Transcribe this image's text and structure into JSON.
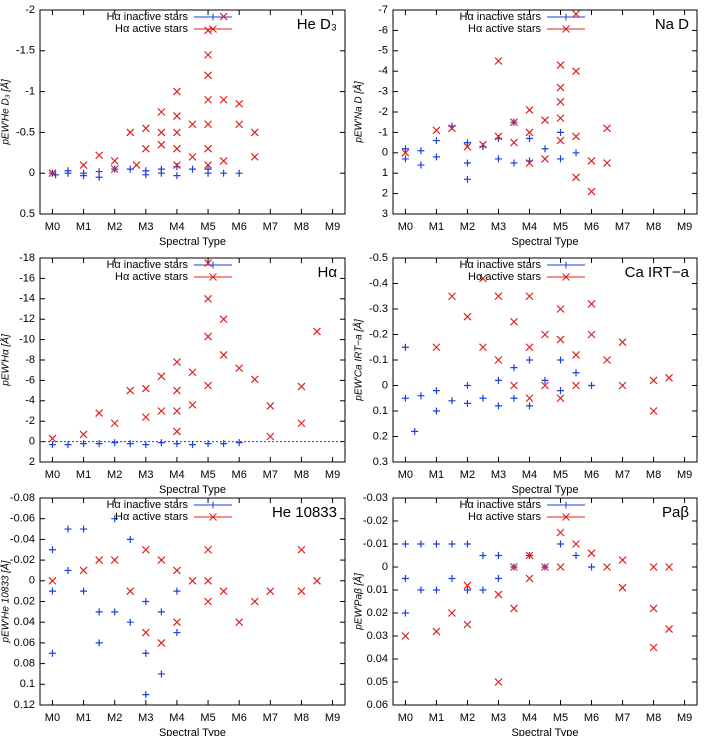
{
  "chart_data": [
    {
      "type": "scatter",
      "title": "He D₃",
      "x_label": "Spectral Type",
      "y_label": "pEW′He D₃ [Å]",
      "xlim": [
        -0.4,
        9.4
      ],
      "xticks": [
        {
          "value": 0,
          "label": "M0"
        },
        {
          "value": 1,
          "label": "M1"
        },
        {
          "value": 2,
          "label": "M2"
        },
        {
          "value": 3,
          "label": "M3"
        },
        {
          "value": 4,
          "label": "M4"
        },
        {
          "value": 5,
          "label": "M5"
        },
        {
          "value": 6,
          "label": "M6"
        },
        {
          "value": 7,
          "label": "M7"
        },
        {
          "value": 8,
          "label": "M8"
        },
        {
          "value": 9,
          "label": "M9"
        }
      ],
      "ylim": [
        0.5,
        -2
      ],
      "yticks": [
        0.5,
        0,
        -0.5,
        -1,
        -1.5,
        -2
      ],
      "series": [
        {
          "name": "Hα inactive stars",
          "color": "#1f3fe0",
          "marker": "plus",
          "x": [
            0,
            0.1,
            0.5,
            0.5,
            1,
            1,
            1.5,
            1.5,
            2,
            2.5,
            3,
            3,
            3.5,
            3.5,
            4,
            4,
            4.5,
            5,
            5,
            5.5,
            6
          ],
          "values": [
            0,
            0.02,
            0,
            -0.03,
            0,
            0.03,
            -0.02,
            0.05,
            -0.05,
            -0.05,
            0.02,
            -0.03,
            0,
            -0.05,
            0.03,
            -0.08,
            -0.05,
            0,
            -0.05,
            0,
            0
          ]
        },
        {
          "name": "Hα active stars",
          "color": "#e0201f",
          "marker": "cross",
          "x": [
            0,
            1,
            1.5,
            2,
            2,
            2.5,
            2.7,
            3,
            3,
            3.5,
            3.5,
            3.5,
            4,
            4,
            4,
            4,
            4,
            4.5,
            4.5,
            5,
            5,
            5,
            5,
            5,
            5,
            5,
            5.5,
            5.5,
            5.5,
            6,
            6,
            6.5,
            6.5
          ],
          "values": [
            0,
            -0.1,
            -0.22,
            -0.05,
            -0.15,
            -0.5,
            -0.1,
            -0.55,
            -0.3,
            -0.75,
            -0.5,
            -0.35,
            -1.0,
            -0.7,
            -0.5,
            -0.3,
            -0.1,
            -0.6,
            -0.2,
            -1.75,
            -1.45,
            -1.2,
            -0.9,
            -0.6,
            -0.3,
            -0.1,
            -1.92,
            -0.9,
            -0.15,
            -0.85,
            -0.6,
            -0.5,
            -0.2
          ]
        }
      ]
    },
    {
      "type": "scatter",
      "title": "Na D",
      "x_label": "Spectral Type",
      "y_label": "pEW′Na D [Å]",
      "xlim": [
        -0.4,
        9.4
      ],
      "xticks": [
        {
          "value": 0,
          "label": "M0"
        },
        {
          "value": 1,
          "label": "M1"
        },
        {
          "value": 2,
          "label": "M2"
        },
        {
          "value": 3,
          "label": "M3"
        },
        {
          "value": 4,
          "label": "M4"
        },
        {
          "value": 5,
          "label": "M5"
        },
        {
          "value": 6,
          "label": "M6"
        },
        {
          "value": 7,
          "label": "M7"
        },
        {
          "value": 8,
          "label": "M8"
        },
        {
          "value": 9,
          "label": "M9"
        }
      ],
      "ylim": [
        3,
        -7
      ],
      "yticks": [
        3,
        2,
        1,
        0,
        -1,
        -2,
        -3,
        -4,
        -5,
        -6,
        -7
      ],
      "series": [
        {
          "name": "Hα inactive stars",
          "color": "#1f3fe0",
          "marker": "plus",
          "x": [
            0,
            0,
            0.5,
            0.5,
            1,
            1,
            1.5,
            2,
            2,
            2,
            2.5,
            3,
            3,
            3.5,
            3.5,
            4,
            4,
            4.5,
            5,
            5,
            5.5
          ],
          "values": [
            -0.2,
            0.3,
            -0.1,
            0.6,
            -0.6,
            0.2,
            -1.3,
            -0.5,
            0.5,
            1.3,
            -0.3,
            -0.7,
            0.3,
            -1.5,
            0.5,
            -0.7,
            0.4,
            -0.2,
            -1,
            0.3,
            0
          ]
        },
        {
          "name": "Hα active stars",
          "color": "#e0201f",
          "marker": "cross",
          "x": [
            0,
            1,
            1.5,
            2,
            2.5,
            3,
            3,
            3.5,
            3.5,
            4,
            4,
            4,
            4.5,
            4.5,
            5,
            5,
            5,
            5,
            5,
            5.5,
            5.5,
            5.5,
            5.5,
            6,
            6,
            6.5,
            6.5
          ],
          "values": [
            0,
            -1.1,
            -1.2,
            -0.3,
            -0.4,
            -4.5,
            -0.8,
            -1.5,
            -0.5,
            -2.1,
            -1,
            0.5,
            -1.6,
            0.3,
            -4.3,
            -3.2,
            -2.5,
            -1.7,
            -0.6,
            -6.8,
            -4,
            -0.8,
            1.2,
            0.4,
            1.9,
            -1.2,
            0.5
          ]
        }
      ]
    },
    {
      "type": "scatter",
      "title": "Hα",
      "x_label": "Spectral Type",
      "y_label": "pEW′Hα [Å]",
      "xlim": [
        -0.4,
        9.4
      ],
      "xticks": [
        {
          "value": 0,
          "label": "M0"
        },
        {
          "value": 1,
          "label": "M1"
        },
        {
          "value": 2,
          "label": "M2"
        },
        {
          "value": 3,
          "label": "M3"
        },
        {
          "value": 4,
          "label": "M4"
        },
        {
          "value": 5,
          "label": "M5"
        },
        {
          "value": 6,
          "label": "M6"
        },
        {
          "value": 7,
          "label": "M7"
        },
        {
          "value": 8,
          "label": "M8"
        },
        {
          "value": 9,
          "label": "M9"
        }
      ],
      "ylim": [
        2,
        -18
      ],
      "yticks": [
        2,
        0,
        -2,
        -4,
        -6,
        -8,
        -10,
        -12,
        -14,
        -16,
        -18
      ],
      "reference_line": 0,
      "series": [
        {
          "name": "Hα inactive stars",
          "color": "#1f3fe0",
          "marker": "plus",
          "x": [
            0,
            0.5,
            1,
            1.5,
            2,
            2.5,
            3,
            3.5,
            4,
            4.5,
            5,
            5.5,
            6
          ],
          "values": [
            0.3,
            0.3,
            0.2,
            0.2,
            0.1,
            0.2,
            0.3,
            0.1,
            0.2,
            0.3,
            0.2,
            0.2,
            0.1
          ]
        },
        {
          "name": "Hα active stars",
          "color": "#e0201f",
          "marker": "cross",
          "x": [
            0,
            1,
            1.5,
            2,
            2.5,
            3,
            3,
            3.5,
            3.5,
            4,
            4,
            4,
            4,
            4.5,
            4.5,
            5,
            5,
            5,
            5,
            5.5,
            5.5,
            6,
            6.5,
            7,
            7,
            8,
            8,
            8.5
          ],
          "values": [
            -0.3,
            -0.7,
            -2.8,
            -1.8,
            -5,
            -5.2,
            -2.4,
            -6.4,
            -3,
            -7.8,
            -5,
            -3,
            -1,
            -6.8,
            -3.6,
            -17.5,
            -14,
            -10.3,
            -5.5,
            -12,
            -8.5,
            -7.2,
            -6.1,
            -3.5,
            -0.5,
            -5.4,
            -1.8,
            -10.8
          ]
        }
      ]
    },
    {
      "type": "scatter",
      "title": "Ca IRT−a",
      "x_label": "Spectral Type",
      "y_label": "pEW′Ca IRT−a [Å]",
      "xlim": [
        -0.4,
        9.4
      ],
      "xticks": [
        {
          "value": 0,
          "label": "M0"
        },
        {
          "value": 1,
          "label": "M1"
        },
        {
          "value": 2,
          "label": "M2"
        },
        {
          "value": 3,
          "label": "M3"
        },
        {
          "value": 4,
          "label": "M4"
        },
        {
          "value": 5,
          "label": "M5"
        },
        {
          "value": 6,
          "label": "M6"
        },
        {
          "value": 7,
          "label": "M7"
        },
        {
          "value": 8,
          "label": "M8"
        },
        {
          "value": 9,
          "label": "M9"
        }
      ],
      "ylim": [
        0.3,
        -0.5
      ],
      "yticks": [
        0.3,
        0.2,
        0.1,
        0,
        -0.1,
        -0.2,
        -0.3,
        -0.4,
        -0.5
      ],
      "series": [
        {
          "name": "Hα inactive stars",
          "color": "#1f3fe0",
          "marker": "plus",
          "x": [
            0,
            0,
            0.3,
            0.5,
            1,
            1,
            1.5,
            2,
            2,
            2.5,
            3,
            3,
            3.5,
            3.5,
            4,
            4,
            4.5,
            5,
            5,
            5.5,
            6
          ],
          "values": [
            -0.15,
            0.05,
            0.18,
            0.04,
            0.02,
            0.1,
            0.06,
            0,
            0.07,
            0.05,
            -0.02,
            0.08,
            -0.07,
            0.05,
            -0.1,
            0.08,
            -0.02,
            -0.1,
            0.02,
            -0.05,
            0
          ]
        },
        {
          "name": "Hα active stars",
          "color": "#e0201f",
          "marker": "cross",
          "x": [
            1,
            1.5,
            2,
            2.5,
            2.5,
            3,
            3,
            3.5,
            3.5,
            4,
            4,
            4,
            4.5,
            4.5,
            5,
            5,
            5,
            5.5,
            5.5,
            6,
            6,
            6.5,
            7,
            7,
            8,
            8,
            8.5
          ],
          "values": [
            -0.15,
            -0.35,
            -0.27,
            -0.42,
            -0.15,
            -0.35,
            -0.1,
            -0.25,
            0,
            -0.35,
            -0.15,
            0.05,
            -0.2,
            0,
            -0.3,
            -0.18,
            0.05,
            -0.12,
            0,
            -0.32,
            -0.2,
            -0.1,
            -0.17,
            0,
            -0.02,
            0.1,
            -0.03
          ]
        }
      ]
    },
    {
      "type": "scatter",
      "title": "He 10833",
      "x_label": "Spectral Type",
      "y_label": "pEW′He 10833 [Å]",
      "xlim": [
        -0.4,
        9.4
      ],
      "xticks": [
        {
          "value": 0,
          "label": "M0"
        },
        {
          "value": 1,
          "label": "M1"
        },
        {
          "value": 2,
          "label": "M2"
        },
        {
          "value": 3,
          "label": "M3"
        },
        {
          "value": 4,
          "label": "M4"
        },
        {
          "value": 5,
          "label": "M5"
        },
        {
          "value": 6,
          "label": "M6"
        },
        {
          "value": 7,
          "label": "M7"
        },
        {
          "value": 8,
          "label": "M8"
        },
        {
          "value": 9,
          "label": "M9"
        }
      ],
      "ylim": [
        0.12,
        -0.08
      ],
      "yticks": [
        0.12,
        0.1,
        0.08,
        0.06,
        0.04,
        0.02,
        0,
        -0.02,
        -0.04,
        -0.06,
        -0.08
      ],
      "series": [
        {
          "name": "Hα inactive stars",
          "color": "#1f3fe0",
          "marker": "plus",
          "x": [
            0,
            0,
            0,
            0.5,
            0.5,
            1,
            1,
            1.5,
            1.5,
            2,
            2,
            2.5,
            2.5,
            3,
            3,
            3,
            3.5,
            3.5,
            4,
            4
          ],
          "values": [
            -0.03,
            0.01,
            0.07,
            -0.05,
            -0.01,
            -0.05,
            0.01,
            0.03,
            0.06,
            -0.06,
            0.03,
            -0.04,
            0.04,
            0.02,
            0.07,
            0.11,
            0.03,
            0.09,
            0.01,
            0.05
          ]
        },
        {
          "name": "Hα active stars",
          "color": "#e0201f",
          "marker": "cross",
          "x": [
            0,
            1,
            1.5,
            2,
            2.5,
            3,
            3,
            3.5,
            3.5,
            4,
            4,
            4.5,
            5,
            5,
            5,
            5.5,
            6,
            6.5,
            7,
            8,
            8,
            8.5
          ],
          "values": [
            0,
            -0.01,
            -0.02,
            -0.02,
            0.01,
            -0.03,
            0.05,
            -0.02,
            0.06,
            -0.01,
            0.04,
            0,
            -0.03,
            0,
            0.02,
            0.01,
            0.04,
            0.02,
            0.01,
            -0.03,
            0.01,
            0
          ]
        }
      ]
    },
    {
      "type": "scatter",
      "title": "Paβ",
      "x_label": "Spectral Type",
      "y_label": "pEW′Paβ [Å]",
      "xlim": [
        -0.4,
        9.4
      ],
      "xticks": [
        {
          "value": 0,
          "label": "M0"
        },
        {
          "value": 1,
          "label": "M1"
        },
        {
          "value": 2,
          "label": "M2"
        },
        {
          "value": 3,
          "label": "M3"
        },
        {
          "value": 4,
          "label": "M4"
        },
        {
          "value": 5,
          "label": "M5"
        },
        {
          "value": 6,
          "label": "M6"
        },
        {
          "value": 7,
          "label": "M7"
        },
        {
          "value": 8,
          "label": "M8"
        },
        {
          "value": 9,
          "label": "M9"
        }
      ],
      "ylim": [
        0.06,
        -0.03
      ],
      "yticks": [
        0.06,
        0.05,
        0.04,
        0.03,
        0.02,
        0.01,
        0,
        -0.01,
        -0.02,
        -0.03
      ],
      "series": [
        {
          "name": "Hα inactive stars",
          "color": "#1f3fe0",
          "marker": "plus",
          "x": [
            0,
            0,
            0,
            0.5,
            0.5,
            1,
            1,
            1.5,
            1.5,
            2,
            2,
            2.5,
            2.5,
            3,
            3,
            3.5,
            4,
            4.5,
            5,
            5.5,
            6
          ],
          "values": [
            -0.01,
            0.005,
            0.02,
            -0.01,
            0.01,
            -0.01,
            0.01,
            -0.01,
            0.005,
            -0.01,
            0.01,
            -0.005,
            0.01,
            -0.005,
            0.005,
            0,
            -0.005,
            0,
            -0.01,
            -0.005,
            0
          ]
        },
        {
          "name": "Hα active stars",
          "color": "#e0201f",
          "marker": "cross",
          "x": [
            0,
            1,
            1.5,
            2,
            2,
            3,
            3,
            3.5,
            3.5,
            4,
            4,
            4.5,
            5,
            5,
            5.5,
            6,
            6.5,
            7,
            7,
            8,
            8,
            8,
            8.5,
            8.5
          ],
          "values": [
            0.03,
            0.028,
            0.02,
            0.025,
            0.008,
            0.05,
            0.012,
            0.018,
            0,
            0.005,
            -0.005,
            0,
            -0.015,
            0,
            -0.01,
            -0.006,
            0,
            -0.003,
            0.009,
            0,
            0.018,
            0.035,
            0,
            0.027
          ]
        }
      ]
    }
  ]
}
